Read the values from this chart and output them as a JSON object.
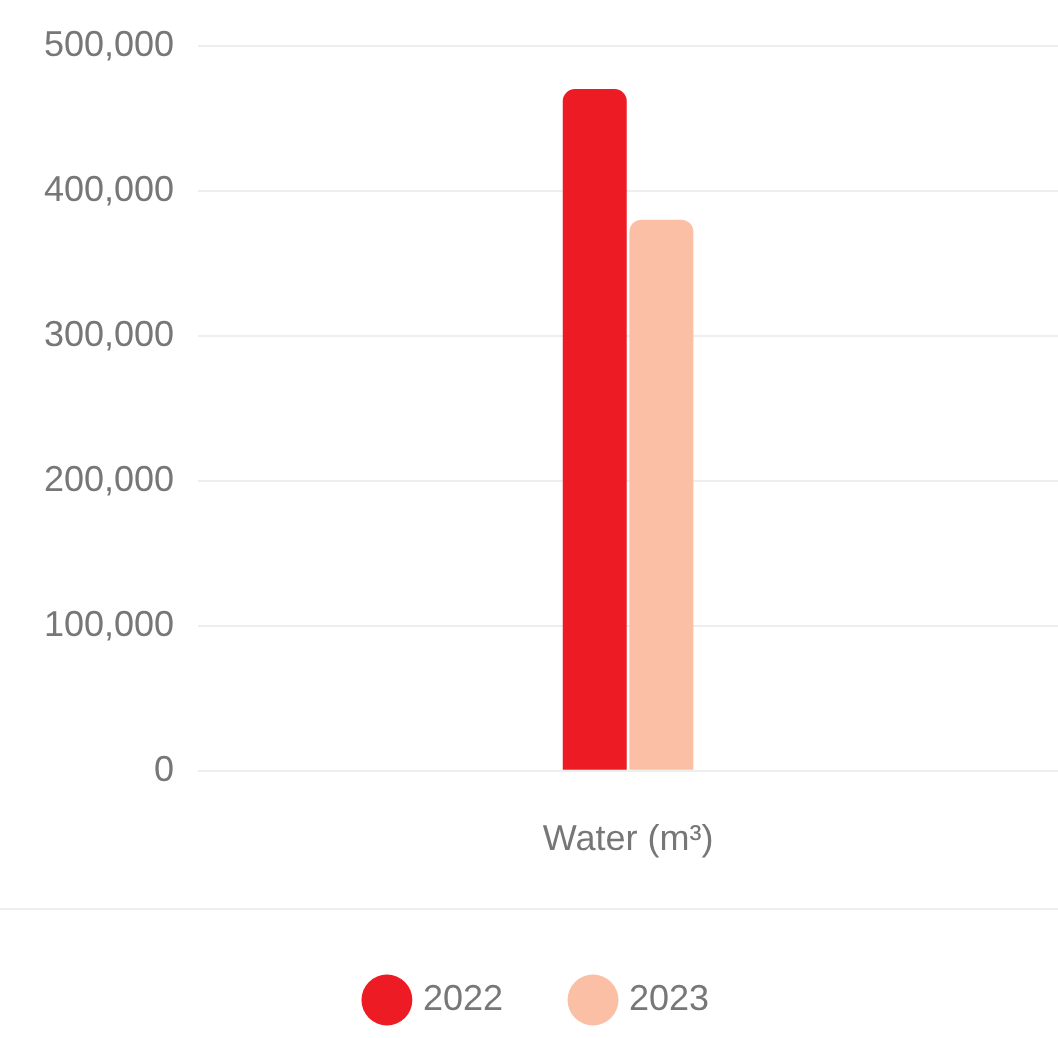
{
  "chart_data": {
    "type": "bar",
    "categories": [
      "Water (m³)"
    ],
    "series": [
      {
        "name": "2022",
        "color": "#ed1c24",
        "values": [
          470000
        ]
      },
      {
        "name": "2023",
        "color": "#fbbfa6",
        "values": [
          380000
        ]
      }
    ],
    "ylim": [
      0,
      500000
    ],
    "yticks": [
      {
        "value": 0,
        "label": "0"
      },
      {
        "value": 100000,
        "label": "100,000"
      },
      {
        "value": 200000,
        "label": "200,000"
      },
      {
        "value": 300000,
        "label": "300,000"
      },
      {
        "value": 400000,
        "label": "400,000"
      },
      {
        "value": 500000,
        "label": "500,000"
      }
    ],
    "grid": "y",
    "legend": "bottom"
  }
}
